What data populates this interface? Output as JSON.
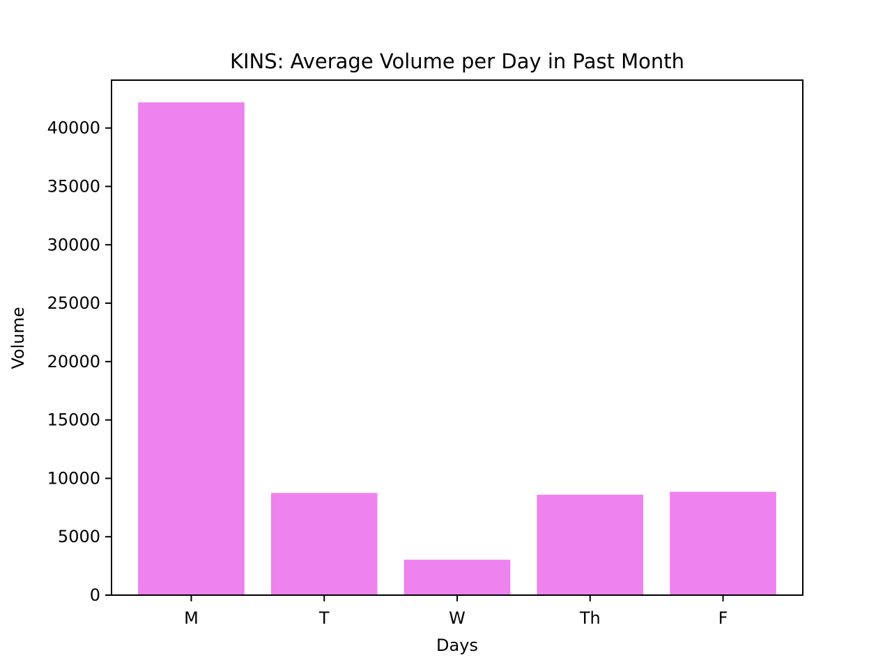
{
  "chart_data": {
    "type": "bar",
    "title": "KINS: Average Volume per Day in Past Month",
    "xlabel": "Days",
    "ylabel": "Volume",
    "categories": [
      "M",
      "T",
      "W",
      "Th",
      "F"
    ],
    "values": [
      42200,
      8750,
      3030,
      8600,
      8850
    ],
    "ylim": [
      0,
      44100
    ],
    "yticks": [
      0,
      5000,
      10000,
      15000,
      20000,
      25000,
      30000,
      35000,
      40000
    ],
    "ytick_labels": [
      "0",
      "5000",
      "10000",
      "15000",
      "20000",
      "25000",
      "30000",
      "35000",
      "40000"
    ],
    "bar_color": "#ee82ee",
    "grid": false,
    "legend": "none"
  }
}
